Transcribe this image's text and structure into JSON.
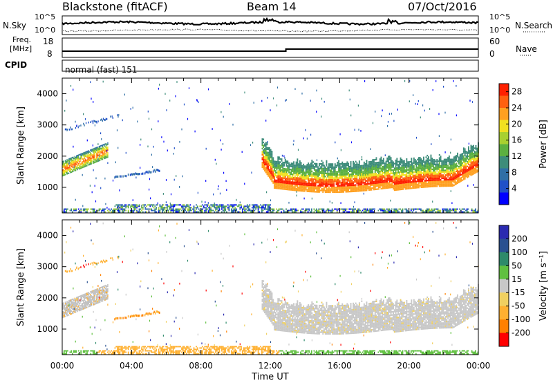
{
  "header": {
    "station": "Blackstone (fitACF)",
    "beam": "Beam 14",
    "date": "07/Oct/2016"
  },
  "panels": {
    "nsky_label": "N.Sky",
    "nsearch_label": "N.Search",
    "nsky_ticks": [
      "10^5",
      "10^0"
    ],
    "nsearch_ticks": [
      "10^5",
      "10^0"
    ],
    "freq_label_1": "Freq.",
    "freq_label_2": "[MHz]",
    "freq_ticks": [
      "18",
      "8"
    ],
    "nave_label": "Nave",
    "nave_ticks": [
      "60",
      "0"
    ],
    "cpid_label": "CPID",
    "cpid_text": "normal (fast) 151"
  },
  "colors": {
    "power": [
      "#0000ff",
      "#2050c8",
      "#2f6fa6",
      "#3d8c7a",
      "#5cb040",
      "#a8d030",
      "#f0e020",
      "#ffa020",
      "#ff6010",
      "#ff2000"
    ],
    "velocity": [
      "#ff0000",
      "#ff8000",
      "#ffb030",
      "#f0d060",
      "#c8c8c8",
      "#60c040",
      "#2e8a6a",
      "#2a5090",
      "#2a2ab0"
    ],
    "ground": "#c0c0c0"
  },
  "chart_data": [
    {
      "type": "heatmap",
      "name": "power",
      "ylabel": "Slant Range [km]",
      "xlabel": "Time UT",
      "xticks": [
        "00:00",
        "04:00",
        "08:00",
        "12:00",
        "16:00",
        "20:00",
        "00:00"
      ],
      "xlim": [
        0,
        24
      ],
      "yticks": [
        1000,
        2000,
        3000,
        4000
      ],
      "ylim": [
        180,
        4500
      ],
      "colorbar_label": "Power [dB]",
      "colorbar_ticks": [
        4,
        8,
        12,
        16,
        20,
        24,
        28
      ],
      "colorbar_range": [
        0,
        30
      ]
    },
    {
      "type": "heatmap",
      "name": "velocity",
      "ylabel": "Slant Range [km]",
      "xlabel": "Time UT",
      "xticks": [
        "00:00",
        "04:00",
        "08:00",
        "12:00",
        "16:00",
        "20:00",
        "00:00"
      ],
      "xlim": [
        0,
        24
      ],
      "yticks": [
        1000,
        2000,
        3000,
        4000
      ],
      "ylim": [
        180,
        4500
      ],
      "colorbar_label": "Velocity [m s⁻¹]",
      "colorbar_ticks": [
        "200",
        "100",
        "50",
        "15",
        "-15",
        "-50",
        "-100",
        "-200"
      ]
    }
  ]
}
